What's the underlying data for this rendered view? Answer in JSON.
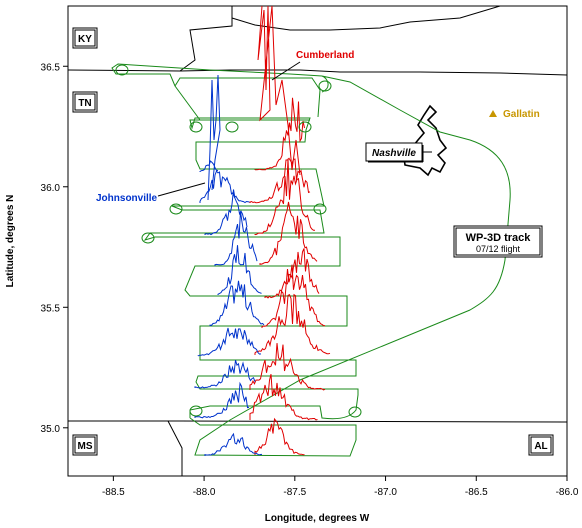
{
  "axes": {
    "xlabel": "Longitude, degrees W",
    "ylabel": "Latitude, degrees N",
    "xlim": [
      -88.75,
      -86.0
    ],
    "ylim": [
      34.8,
      36.75
    ],
    "xticks": [
      "-88.5",
      "-88.0",
      "-87.5",
      "-87.0",
      "-86.5",
      "-86.0"
    ],
    "yticks": [
      "35.0",
      "35.5",
      "36.0",
      "36.5"
    ]
  },
  "states": {
    "ky": "KY",
    "tn": "TN",
    "ms": "MS",
    "al": "AL"
  },
  "places": {
    "cumberland": "Cumberland",
    "johnsonville": "Johnsonville",
    "gallatin": "Gallatin",
    "nashville": "Nashville"
  },
  "legend": {
    "title": "WP-3D track",
    "subtitle": "07/12 flight"
  },
  "colors": {
    "track": "#1a8a1a",
    "cumberland": "#e00000",
    "johnsonville": "#0033cc",
    "gallatin": "#c89600",
    "boundary": "#000000"
  }
}
